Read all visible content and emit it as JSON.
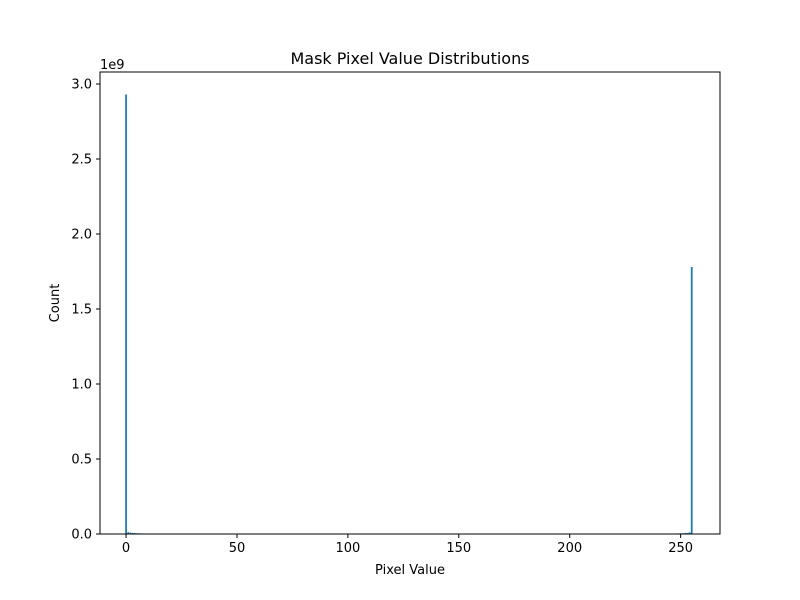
{
  "chart_data": {
    "type": "bar",
    "title": "Mask Pixel Value Distributions",
    "xlabel": "Pixel Value",
    "ylabel": "Count",
    "y_offset_label": "1e9",
    "xlim": [
      -11.75,
      267.75
    ],
    "ylim": [
      0,
      3080000000.0
    ],
    "x_ticks": [
      0,
      50,
      100,
      150,
      200,
      250
    ],
    "y_ticks": [
      0.0,
      0.5,
      1.0,
      1.5,
      2.0,
      2.5,
      3.0
    ],
    "y_tick_labels": [
      "0.0",
      "0.5",
      "1.0",
      "1.5",
      "2.0",
      "2.5",
      "3.0"
    ],
    "bar_width": 0.8,
    "bar_color": "#1f77b4",
    "grid": false,
    "x": [
      0,
      1,
      2,
      3,
      4,
      5,
      6,
      7,
      8,
      9,
      10,
      11,
      245,
      246,
      247,
      248,
      249,
      250,
      251,
      252,
      253,
      254,
      255
    ],
    "values": [
      2930000000,
      12000000,
      9000000,
      7000000,
      6000000,
      5000000,
      4500000,
      4000000,
      3500000,
      3000000,
      2500000,
      2000000,
      2000000,
      2500000,
      3000000,
      3500000,
      4000000,
      4500000,
      5000000,
      6000000,
      7000000,
      11000000,
      1780000000
    ]
  }
}
